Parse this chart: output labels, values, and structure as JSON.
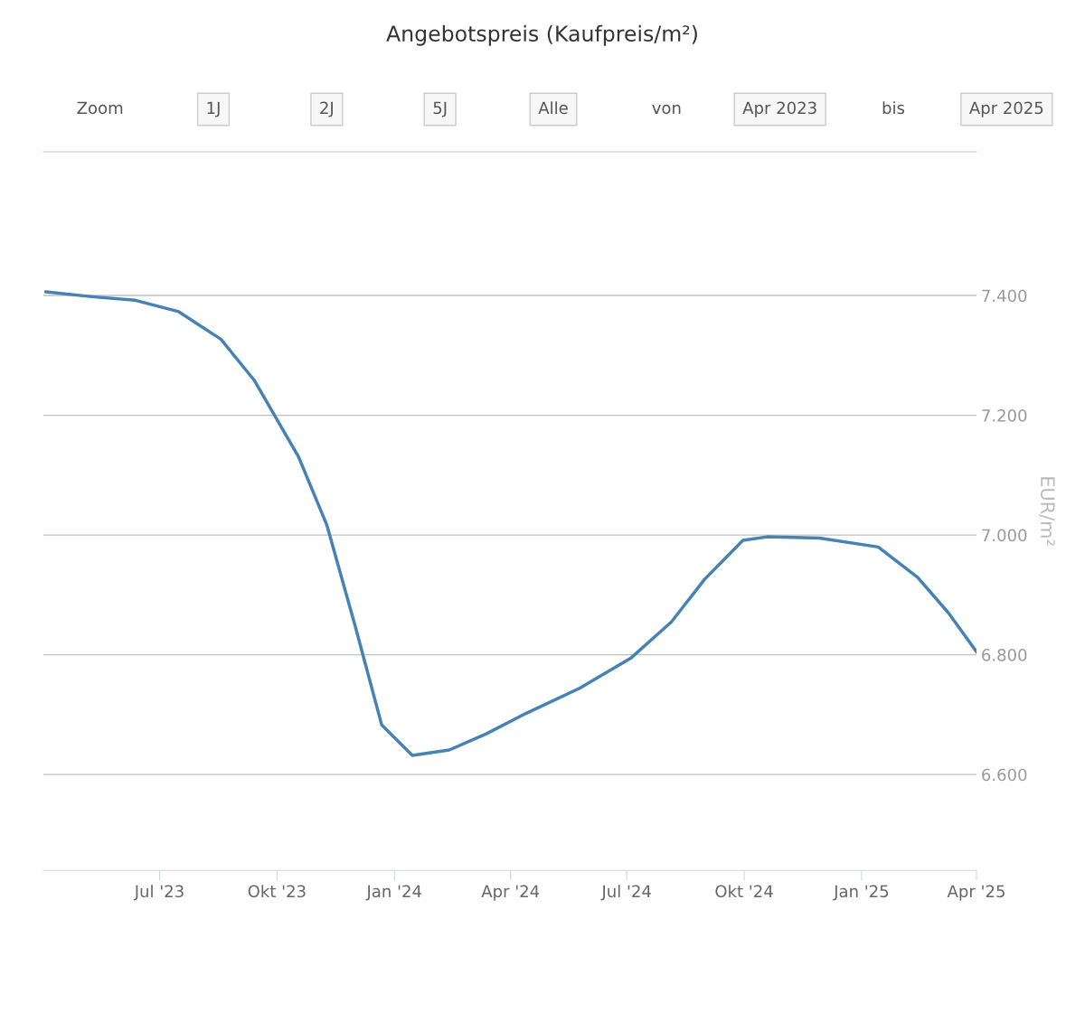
{
  "chart_data": {
    "type": "line",
    "title": "Angebotspreis (Kaufpreis/m²)",
    "ylabel": "EUR/m²",
    "annotations": [
      "Zoom",
      "1J",
      "2J",
      "5J",
      "Alle",
      "von",
      "Apr 2023",
      "bis",
      "Apr 2025"
    ],
    "x": [
      "2023-04-03",
      "2023-05-09",
      "2023-06-12",
      "2023-07-16",
      "2023-08-18",
      "2023-09-13",
      "2023-10-18",
      "2023-11-09",
      "2023-12-01",
      "2023-12-22",
      "2024-01-15",
      "2024-02-13",
      "2024-03-13",
      "2024-04-13",
      "2024-05-25",
      "2024-07-04",
      "2024-08-05",
      "2024-08-31",
      "2024-09-30",
      "2024-10-19",
      "2024-11-29",
      "2025-01-14",
      "2025-02-14",
      "2025-03-10",
      "2025-04-01"
    ],
    "series": [
      {
        "color": "#4682b4",
        "values": [
          7.406,
          7.398,
          7.392,
          7.373,
          7.327,
          7.259,
          7.13,
          7.017,
          6.85,
          6.683,
          6.632,
          6.641,
          6.668,
          6.702,
          6.744,
          6.794,
          6.855,
          6.926,
          6.991,
          6.997,
          6.995,
          6.98,
          6.929,
          6.87,
          6.805
        ]
      }
    ],
    "xlim": [
      "2023-04-01",
      "2025-04-01"
    ],
    "xticks": [
      {
        "value": "2023-07-01",
        "label": "Jul '23"
      },
      {
        "value": "2023-10-01",
        "label": "Okt '23"
      },
      {
        "value": "2024-01-01",
        "label": "Jan '24"
      },
      {
        "value": "2024-04-01",
        "label": "Apr '24"
      },
      {
        "value": "2024-07-01",
        "label": "Jul '24"
      },
      {
        "value": "2024-10-01",
        "label": "Okt '24"
      },
      {
        "value": "2025-01-01",
        "label": "Jan '25"
      },
      {
        "value": "2025-04-01",
        "label": "Apr '25"
      }
    ],
    "ylim": [
      6.44,
      7.64
    ],
    "yticks": [
      {
        "value": 6.6,
        "label": "6.600"
      },
      {
        "value": 6.8,
        "label": "6.800"
      },
      {
        "value": 7.0,
        "label": "7.000"
      },
      {
        "value": 7.2,
        "label": "7.200"
      },
      {
        "value": 7.4,
        "label": "7.400"
      }
    ],
    "grid": "y",
    "legend": false,
    "marker": "none",
    "line_style": "solid"
  }
}
